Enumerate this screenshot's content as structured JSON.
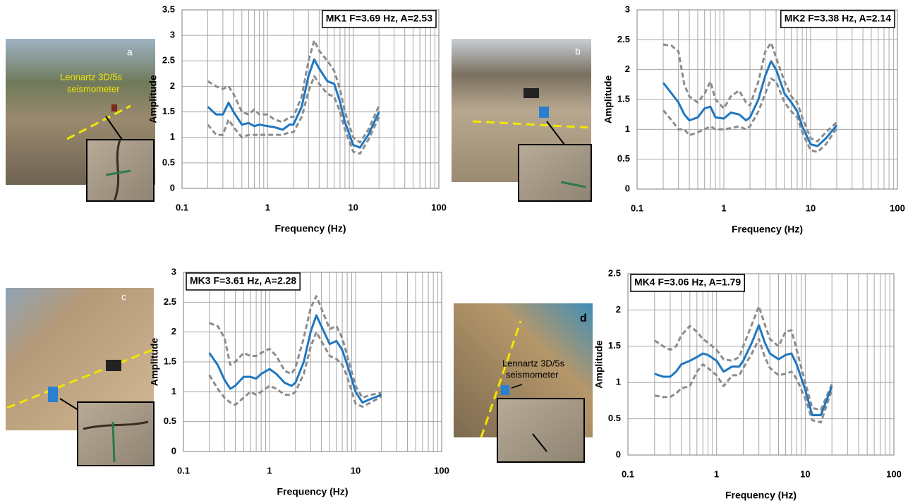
{
  "chart_data": [
    {
      "type": "line",
      "annotation": "MK1 F=3.69 Hz, A=2.53",
      "x_label": "Frequency (Hz)",
      "y_label": "Amplitude",
      "log_x": true,
      "grid": true,
      "xlim": [
        0.1,
        100
      ],
      "xticks": [
        0.1,
        1,
        10,
        100
      ],
      "xminorticks": [
        0.2,
        0.3,
        0.4,
        0.5,
        0.6,
        0.7,
        0.8,
        0.9,
        2,
        3,
        4,
        5,
        6,
        7,
        8,
        9,
        20,
        30,
        40,
        50,
        60,
        70,
        80,
        90
      ],
      "ylim": [
        0,
        3.5
      ],
      "yticks": [
        0,
        0.5,
        1,
        1.5,
        2,
        2.5,
        3,
        3.5
      ],
      "x": [
        0.2,
        0.25,
        0.3,
        0.35,
        0.4,
        0.5,
        0.6,
        0.7,
        0.8,
        1,
        1.2,
        1.5,
        1.8,
        2,
        2.5,
        3,
        3.5,
        4,
        5,
        6,
        7,
        8,
        10,
        12,
        15,
        20
      ],
      "series": [
        {
          "color": "#8c8c8c",
          "line_style": "dashed",
          "values": [
            2.1,
            2.0,
            1.95,
            2.0,
            1.85,
            1.5,
            1.45,
            1.55,
            1.45,
            1.45,
            1.35,
            1.3,
            1.4,
            1.4,
            1.8,
            2.5,
            2.9,
            2.7,
            2.5,
            2.3,
            1.95,
            1.5,
            1.0,
            0.9,
            1.15,
            1.62
          ]
        },
        {
          "color": "#8c8c8c",
          "line_style": "dashed",
          "values": [
            1.25,
            1.05,
            1.05,
            1.35,
            1.2,
            1.0,
            1.05,
            1.05,
            1.05,
            1.05,
            1.05,
            1.05,
            1.1,
            1.1,
            1.4,
            1.9,
            2.2,
            2.05,
            1.85,
            1.8,
            1.5,
            1.15,
            0.72,
            0.68,
            0.95,
            1.4
          ]
        },
        {
          "color": "#1f77c0",
          "line_style": "solid",
          "values": [
            1.6,
            1.45,
            1.45,
            1.68,
            1.5,
            1.25,
            1.28,
            1.22,
            1.25,
            1.22,
            1.2,
            1.15,
            1.25,
            1.25,
            1.6,
            2.2,
            2.53,
            2.35,
            2.1,
            2.05,
            1.7,
            1.3,
            0.85,
            0.8,
            1.05,
            1.5
          ]
        }
      ]
    },
    {
      "type": "line",
      "annotation": "MK2 F=3.38 Hz, A=2.14",
      "x_label": "Frequency (Hz)",
      "y_label": "Amplitude",
      "log_x": true,
      "grid": true,
      "xlim": [
        0.1,
        100
      ],
      "xticks": [
        0.1,
        1,
        10,
        100
      ],
      "xminorticks": [
        0.2,
        0.3,
        0.4,
        0.5,
        0.6,
        0.7,
        0.8,
        0.9,
        2,
        3,
        4,
        5,
        6,
        7,
        8,
        9,
        20,
        30,
        40,
        50,
        60,
        70,
        80,
        90
      ],
      "ylim": [
        0,
        3
      ],
      "yticks": [
        0,
        0.5,
        1,
        1.5,
        2,
        2.5,
        3
      ],
      "x": [
        0.2,
        0.25,
        0.3,
        0.35,
        0.4,
        0.5,
        0.6,
        0.7,
        0.8,
        1,
        1.2,
        1.5,
        1.8,
        2,
        2.5,
        3,
        3.5,
        4,
        5,
        6,
        7,
        8,
        10,
        12,
        15,
        20
      ],
      "series": [
        {
          "color": "#8c8c8c",
          "line_style": "dashed",
          "values": [
            2.42,
            2.4,
            2.3,
            1.75,
            1.55,
            1.45,
            1.6,
            1.8,
            1.5,
            1.35,
            1.55,
            1.65,
            1.45,
            1.4,
            1.8,
            2.3,
            2.45,
            2.2,
            1.8,
            1.55,
            1.45,
            1.2,
            0.85,
            0.8,
            0.95,
            1.12
          ]
        },
        {
          "color": "#8c8c8c",
          "line_style": "dashed",
          "values": [
            1.32,
            1.15,
            1.0,
            1.0,
            0.9,
            0.95,
            1.0,
            1.05,
            1.0,
            1.0,
            1.02,
            1.05,
            1.0,
            1.05,
            1.3,
            1.6,
            1.85,
            1.8,
            1.45,
            1.3,
            1.2,
            0.95,
            0.65,
            0.62,
            0.75,
            1.02
          ]
        },
        {
          "color": "#1f77c0",
          "line_style": "solid",
          "values": [
            1.78,
            1.6,
            1.45,
            1.25,
            1.15,
            1.2,
            1.35,
            1.38,
            1.2,
            1.18,
            1.28,
            1.25,
            1.15,
            1.2,
            1.5,
            1.9,
            2.14,
            2.0,
            1.6,
            1.45,
            1.3,
            1.05,
            0.75,
            0.72,
            0.85,
            1.07
          ]
        }
      ]
    },
    {
      "type": "line",
      "annotation": "MK3 F=3.61 Hz, A=2.28",
      "x_label": "Frequency (Hz)",
      "y_label": "Amplitude",
      "log_x": true,
      "grid": true,
      "xlim": [
        0.1,
        100
      ],
      "xticks": [
        0.1,
        1,
        10,
        100
      ],
      "xminorticks": [
        0.2,
        0.3,
        0.4,
        0.5,
        0.6,
        0.7,
        0.8,
        0.9,
        2,
        3,
        4,
        5,
        6,
        7,
        8,
        9,
        20,
        30,
        40,
        50,
        60,
        70,
        80,
        90
      ],
      "ylim": [
        0,
        3
      ],
      "yticks": [
        0,
        0.5,
        1,
        1.5,
        2,
        2.5,
        3
      ],
      "x": [
        0.2,
        0.25,
        0.3,
        0.35,
        0.4,
        0.5,
        0.6,
        0.7,
        0.8,
        1,
        1.2,
        1.5,
        1.8,
        2,
        2.5,
        3,
        3.5,
        4,
        5,
        6,
        7,
        8,
        10,
        12,
        15,
        20
      ],
      "series": [
        {
          "color": "#8c8c8c",
          "line_style": "dashed",
          "values": [
            2.15,
            2.1,
            1.9,
            1.45,
            1.5,
            1.65,
            1.6,
            1.6,
            1.65,
            1.72,
            1.6,
            1.35,
            1.3,
            1.4,
            1.9,
            2.4,
            2.6,
            2.4,
            2.05,
            2.1,
            1.9,
            1.6,
            1.1,
            0.9,
            0.95,
            0.98
          ]
        },
        {
          "color": "#8c8c8c",
          "line_style": "dashed",
          "values": [
            1.28,
            1.05,
            0.9,
            0.82,
            0.78,
            0.9,
            1.0,
            0.95,
            1.0,
            1.1,
            1.05,
            0.95,
            0.95,
            1.0,
            1.3,
            1.75,
            2.0,
            1.85,
            1.6,
            1.55,
            1.45,
            1.25,
            0.8,
            0.75,
            0.82,
            0.92
          ]
        },
        {
          "color": "#1f77c0",
          "line_style": "solid",
          "values": [
            1.65,
            1.45,
            1.2,
            1.05,
            1.1,
            1.25,
            1.25,
            1.22,
            1.3,
            1.38,
            1.3,
            1.15,
            1.1,
            1.15,
            1.5,
            2.0,
            2.28,
            2.1,
            1.8,
            1.85,
            1.7,
            1.45,
            1.0,
            0.82,
            0.88,
            0.95
          ]
        }
      ]
    },
    {
      "type": "line",
      "annotation": "MK4  F=3.06 Hz, A=1.79",
      "x_label": "Frequency (Hz)",
      "y_label": "Amplitude",
      "log_x": true,
      "grid": true,
      "xlim": [
        0.1,
        100
      ],
      "xticks": [
        0.1,
        1,
        10,
        100
      ],
      "xminorticks": [
        0.2,
        0.3,
        0.4,
        0.5,
        0.6,
        0.7,
        0.8,
        0.9,
        2,
        3,
        4,
        5,
        6,
        7,
        8,
        9,
        20,
        30,
        40,
        50,
        60,
        70,
        80,
        90
      ],
      "ylim": [
        0,
        2.5
      ],
      "yticks": [
        0,
        0.5,
        1,
        1.5,
        2,
        2.5
      ],
      "x": [
        0.2,
        0.25,
        0.3,
        0.35,
        0.4,
        0.5,
        0.6,
        0.7,
        0.8,
        1,
        1.2,
        1.5,
        1.8,
        2,
        2.5,
        3,
        3.5,
        4,
        5,
        6,
        7,
        8,
        10,
        12,
        15,
        20
      ],
      "series": [
        {
          "color": "#8c8c8c",
          "line_style": "dashed",
          "values": [
            1.58,
            1.5,
            1.45,
            1.5,
            1.65,
            1.78,
            1.7,
            1.6,
            1.55,
            1.45,
            1.32,
            1.3,
            1.35,
            1.5,
            1.8,
            2.05,
            1.8,
            1.6,
            1.5,
            1.7,
            1.72,
            1.45,
            1.0,
            0.65,
            0.62,
            0.98
          ]
        },
        {
          "color": "#8c8c8c",
          "line_style": "dashed",
          "values": [
            0.82,
            0.8,
            0.8,
            0.85,
            0.92,
            0.95,
            1.15,
            1.25,
            1.2,
            1.1,
            0.95,
            1.1,
            1.1,
            1.2,
            1.4,
            1.6,
            1.35,
            1.2,
            1.1,
            1.12,
            1.15,
            1.05,
            0.78,
            0.48,
            0.45,
            0.9
          ]
        },
        {
          "color": "#1f77c0",
          "line_style": "solid",
          "values": [
            1.12,
            1.08,
            1.08,
            1.15,
            1.25,
            1.3,
            1.35,
            1.4,
            1.38,
            1.3,
            1.15,
            1.22,
            1.22,
            1.3,
            1.55,
            1.79,
            1.55,
            1.4,
            1.32,
            1.38,
            1.4,
            1.25,
            0.9,
            0.55,
            0.55,
            0.95
          ]
        }
      ]
    }
  ],
  "photos": [
    {
      "label": "a",
      "caption": [
        "Lennartz 3D/5s",
        "seismometer"
      ]
    },
    {
      "label": "b"
    },
    {
      "label": "c"
    },
    {
      "label": "d",
      "caption": [
        "Lennartz 3D/5s",
        "seismometer"
      ]
    }
  ]
}
